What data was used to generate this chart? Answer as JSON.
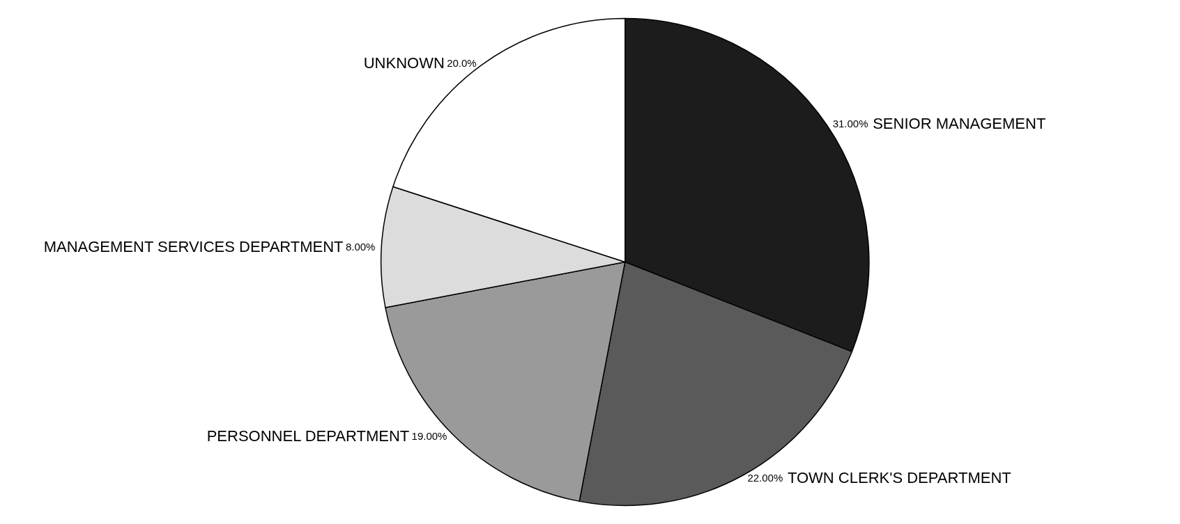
{
  "chart_data": {
    "type": "pie",
    "categories": [
      "SENIOR MANAGEMENT",
      "TOWN CLERK'S DEPARTMENT",
      "PERSONNEL DEPARTMENT",
      "MANAGEMENT SERVICES DEPARTMENT",
      "UNKNOWN"
    ],
    "values": [
      31,
      22,
      19,
      8,
      20
    ],
    "value_labels": [
      "31.00%",
      "22.00%",
      "19.00%",
      "8.00%",
      "20.0%"
    ],
    "colors": [
      "#1c1c1c",
      "#5a5a5a",
      "#9a9a9a",
      "#dcdcdc",
      "#ffffff"
    ],
    "legend": false
  }
}
